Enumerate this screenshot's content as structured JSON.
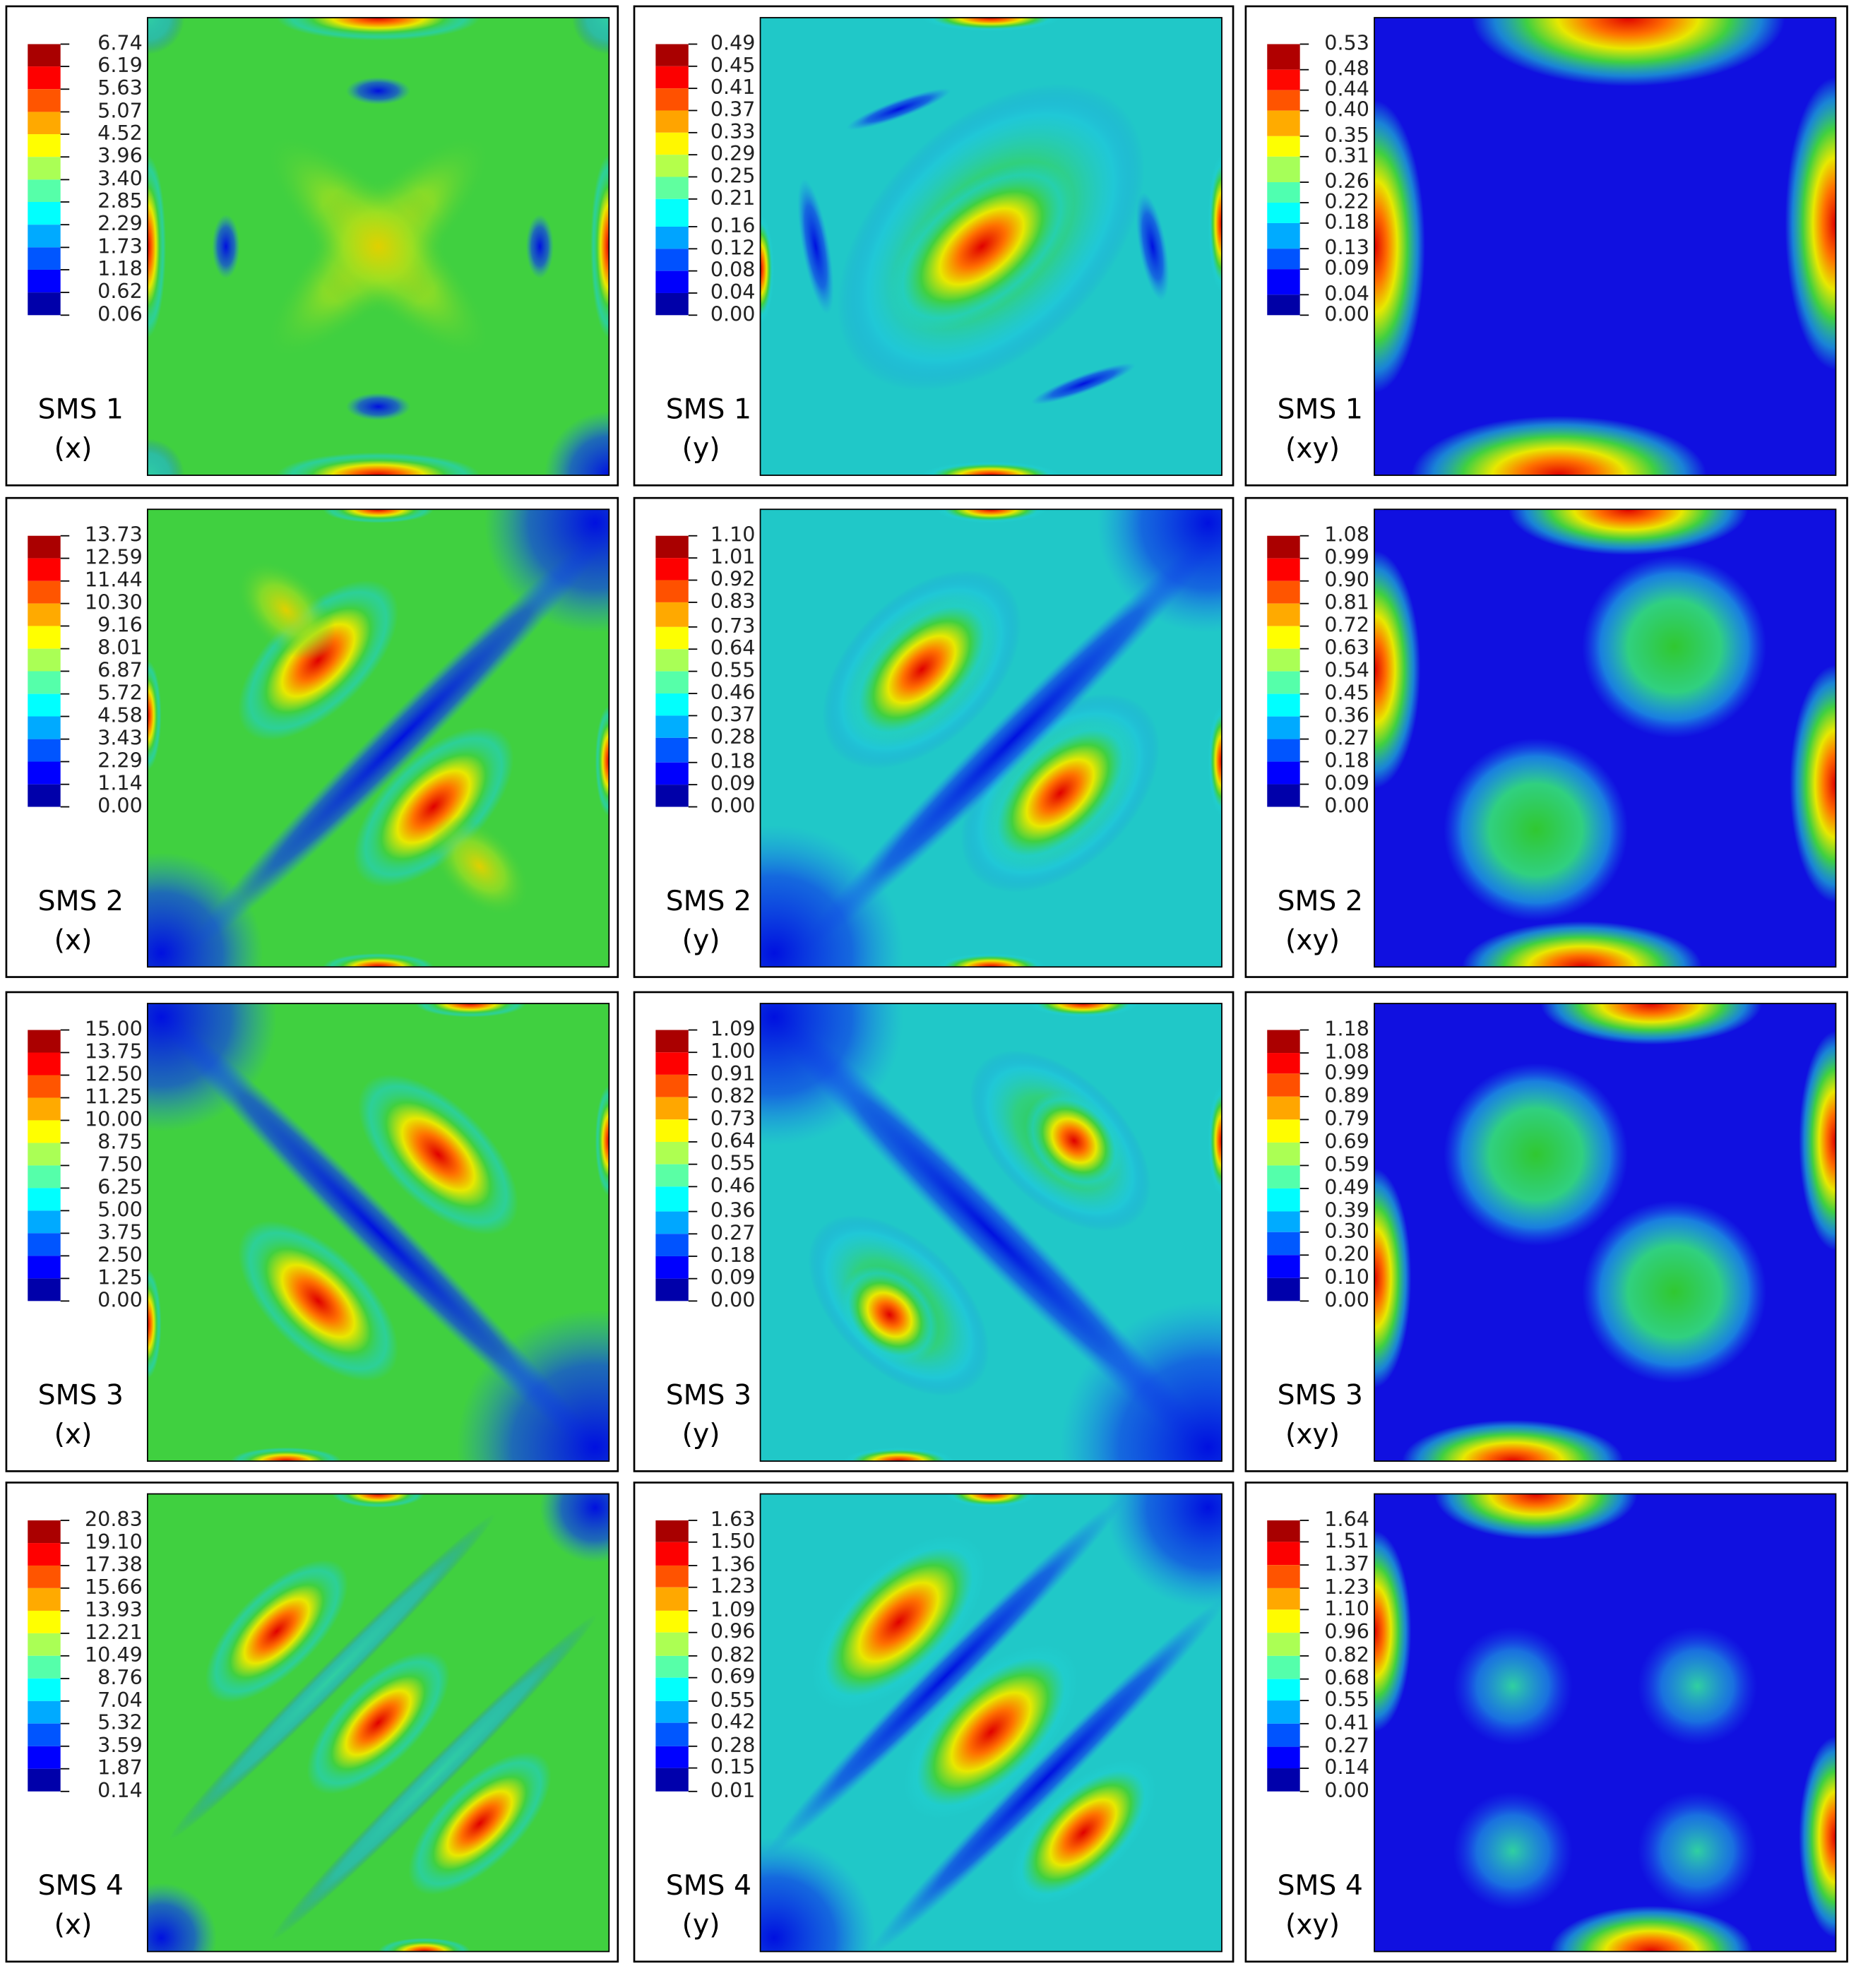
{
  "chart_data": [
    {
      "type": "heatmap",
      "colormap": "jet",
      "title": "SMS 1",
      "subtitle": "(x)",
      "clim": [
        0.06,
        6.74
      ],
      "cticks": [
        6.74,
        6.19,
        5.63,
        5.07,
        4.52,
        3.96,
        {
          "value": 3.4,
          "label": "3.40"
        },
        2.85,
        2.29,
        1.73,
        1.18,
        0.62,
        0.06
      ]
    },
    {
      "type": "heatmap",
      "colormap": "jet",
      "title": "SMS 1",
      "subtitle": "(y)",
      "clim": [
        0,
        0.49
      ],
      "cticks": [
        0.49,
        0.45,
        0.41,
        0.37,
        0.33,
        0.29,
        0.25,
        0.21,
        0.16,
        0.12,
        0.08,
        0.04,
        {
          "value": 0,
          "label": "0.00"
        }
      ]
    },
    {
      "type": "heatmap",
      "colormap": "jet",
      "title": "SMS 1",
      "subtitle": "(xy)",
      "clim": [
        0,
        0.53
      ],
      "cticks": [
        0.53,
        0.48,
        0.44,
        {
          "value": 0.4,
          "label": "0.40"
        },
        0.35,
        0.31,
        0.26,
        0.22,
        0.18,
        0.13,
        0.09,
        0.04,
        {
          "value": 0,
          "label": "0.00"
        }
      ]
    },
    {
      "type": "heatmap",
      "colormap": "jet",
      "title": "SMS 2",
      "subtitle": "(x)",
      "clim": [
        0,
        13.73
      ],
      "cticks": [
        13.73,
        12.59,
        11.44,
        {
          "value": 10.3,
          "label": "10.30"
        },
        9.16,
        8.01,
        6.87,
        5.72,
        4.58,
        3.43,
        2.29,
        1.14,
        {
          "value": 0,
          "label": "0.00"
        }
      ]
    },
    {
      "type": "heatmap",
      "colormap": "jet",
      "title": "SMS 2",
      "subtitle": "(y)",
      "clim": [
        0,
        1.1
      ],
      "cticks": [
        {
          "value": 1.1,
          "label": "1.10"
        },
        1.01,
        0.92,
        0.83,
        0.73,
        0.64,
        0.55,
        0.46,
        0.37,
        0.28,
        0.18,
        0.09,
        {
          "value": 0,
          "label": "0.00"
        }
      ]
    },
    {
      "type": "heatmap",
      "colormap": "jet",
      "title": "SMS 2",
      "subtitle": "(xy)",
      "clim": [
        0,
        1.08
      ],
      "cticks": [
        1.08,
        0.99,
        {
          "value": 0.9,
          "label": "0.90"
        },
        0.81,
        0.72,
        0.63,
        0.54,
        0.45,
        0.36,
        0.27,
        0.18,
        0.09,
        {
          "value": 0,
          "label": "0.00"
        }
      ]
    },
    {
      "type": "heatmap",
      "colormap": "jet",
      "title": "SMS 3",
      "subtitle": "(x)",
      "clim": [
        0,
        15
      ],
      "cticks": [
        {
          "value": 15,
          "label": "15.00"
        },
        13.75,
        {
          "value": 12.5,
          "label": "12.50"
        },
        11.25,
        {
          "value": 10,
          "label": "10.00"
        },
        8.75,
        {
          "value": 7.5,
          "label": "7.50"
        },
        6.25,
        {
          "value": 5,
          "label": "5.00"
        },
        3.75,
        {
          "value": 2.5,
          "label": "2.50"
        },
        1.25,
        {
          "value": 0,
          "label": "0.00"
        }
      ]
    },
    {
      "type": "heatmap",
      "colormap": "jet",
      "title": "SMS 3",
      "subtitle": "(y)",
      "clim": [
        0,
        1.09
      ],
      "cticks": [
        1.09,
        {
          "value": 1,
          "label": "1.00"
        },
        0.91,
        0.82,
        0.73,
        0.64,
        0.55,
        0.46,
        0.36,
        0.27,
        0.18,
        0.09,
        {
          "value": 0,
          "label": "0.00"
        }
      ]
    },
    {
      "type": "heatmap",
      "colormap": "jet",
      "title": "SMS 3",
      "subtitle": "(xy)",
      "clim": [
        0,
        1.18
      ],
      "cticks": [
        1.18,
        1.08,
        0.99,
        0.89,
        0.79,
        0.69,
        0.59,
        0.49,
        0.39,
        {
          "value": 0.3,
          "label": "0.30"
        },
        {
          "value": 0.2,
          "label": "0.20"
        },
        {
          "value": 0.1,
          "label": "0.10"
        },
        {
          "value": 0,
          "label": "0.00"
        }
      ]
    },
    {
      "type": "heatmap",
      "colormap": "jet",
      "title": "SMS 4",
      "subtitle": "(x)",
      "clim": [
        0.14,
        20.83
      ],
      "cticks": [
        20.83,
        {
          "value": 19.1,
          "label": "19.10"
        },
        17.38,
        15.66,
        13.93,
        12.21,
        10.49,
        8.76,
        7.04,
        5.32,
        3.59,
        1.87,
        0.14
      ]
    },
    {
      "type": "heatmap",
      "colormap": "jet",
      "title": "SMS 4",
      "subtitle": "(y)",
      "clim": [
        0.01,
        1.63
      ],
      "cticks": [
        1.63,
        {
          "value": 1.5,
          "label": "1.50"
        },
        1.36,
        1.23,
        1.09,
        0.96,
        0.82,
        0.69,
        0.55,
        0.42,
        0.28,
        0.15,
        0.01
      ]
    },
    {
      "type": "heatmap",
      "colormap": "jet",
      "title": "SMS 4",
      "subtitle": "(xy)",
      "clim": [
        0,
        1.64
      ],
      "cticks": [
        1.64,
        1.51,
        1.37,
        1.23,
        {
          "value": 1.1,
          "label": "1.10"
        },
        0.96,
        0.82,
        0.68,
        0.55,
        0.41,
        0.27,
        0.14,
        {
          "value": 0,
          "label": "0.00"
        }
      ]
    }
  ]
}
